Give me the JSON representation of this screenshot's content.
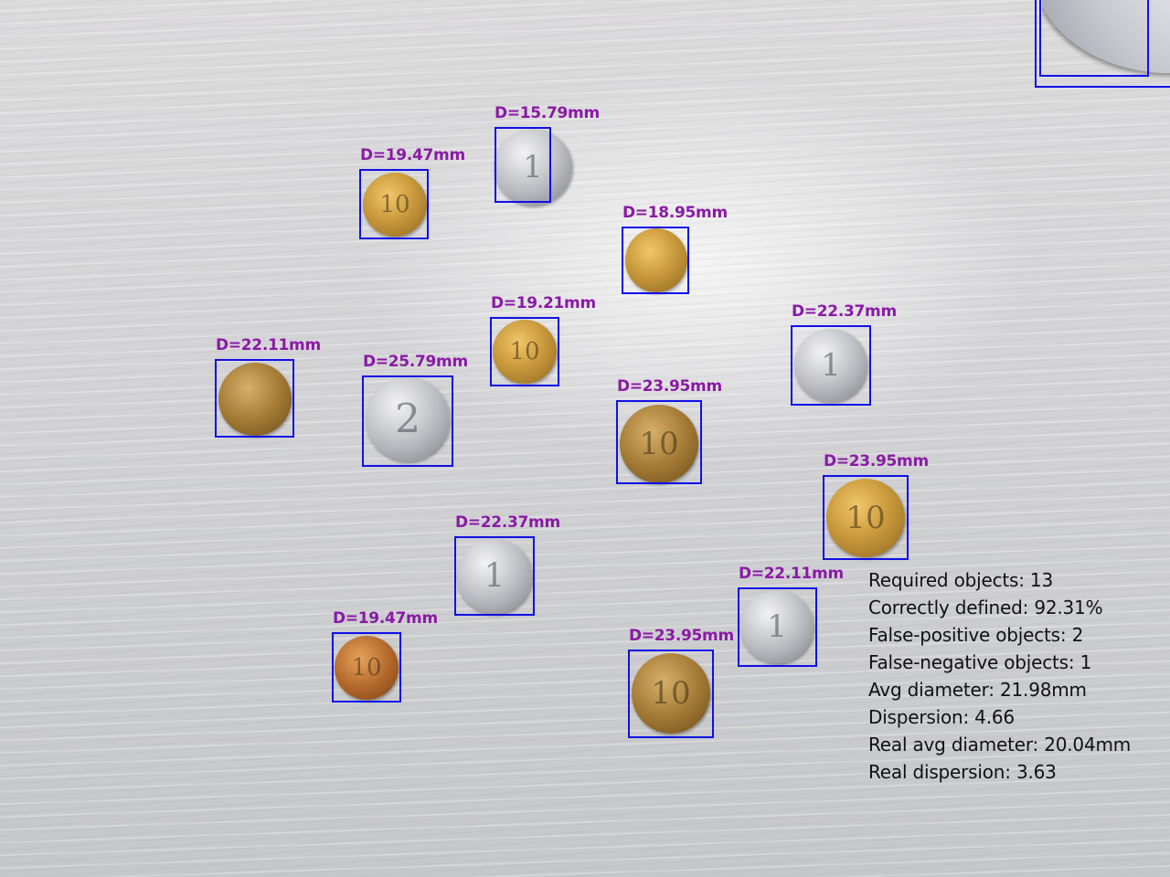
{
  "labels": {
    "coin_1": "D=15.79mm",
    "coin_2": "D=19.47mm",
    "coin_3": "D=18.95mm",
    "coin_4": "D=19.21mm",
    "coin_5": "D=22.37mm",
    "coin_6": "D=22.11mm",
    "coin_7": "D=25.79mm",
    "coin_8": "D=23.95mm",
    "coin_9": "D=23.95mm",
    "coin_10": "D=22.37mm",
    "coin_11": "D=22.11mm",
    "coin_12": "D=19.47mm",
    "coin_13": "D=23.95mm"
  },
  "coin_marks": {
    "coin_1": "1",
    "coin_2": "10",
    "coin_4": "10",
    "coin_5": "1",
    "coin_7": "2",
    "coin_8": "10",
    "coin_9": "10",
    "coin_10": "1",
    "coin_11": "1",
    "coin_12": "10",
    "coin_13": "10"
  },
  "stats": {
    "required": "Required objects: 13",
    "correct": "Correctly defined: 92.31%",
    "false_positive": "False-positive objects: 2",
    "false_negative": "False-negative objects: 1",
    "avg_diameter": "Avg diameter: 21.98mm",
    "dispersion": "Dispersion: 4.66",
    "real_avg_diameter": "Real avg diameter: 20.04mm",
    "real_dispersion": "Real dispersion: 3.63"
  },
  "colors": {
    "box": "#1010e6",
    "label": "#8a1aa6",
    "stats_text": "#111111"
  }
}
